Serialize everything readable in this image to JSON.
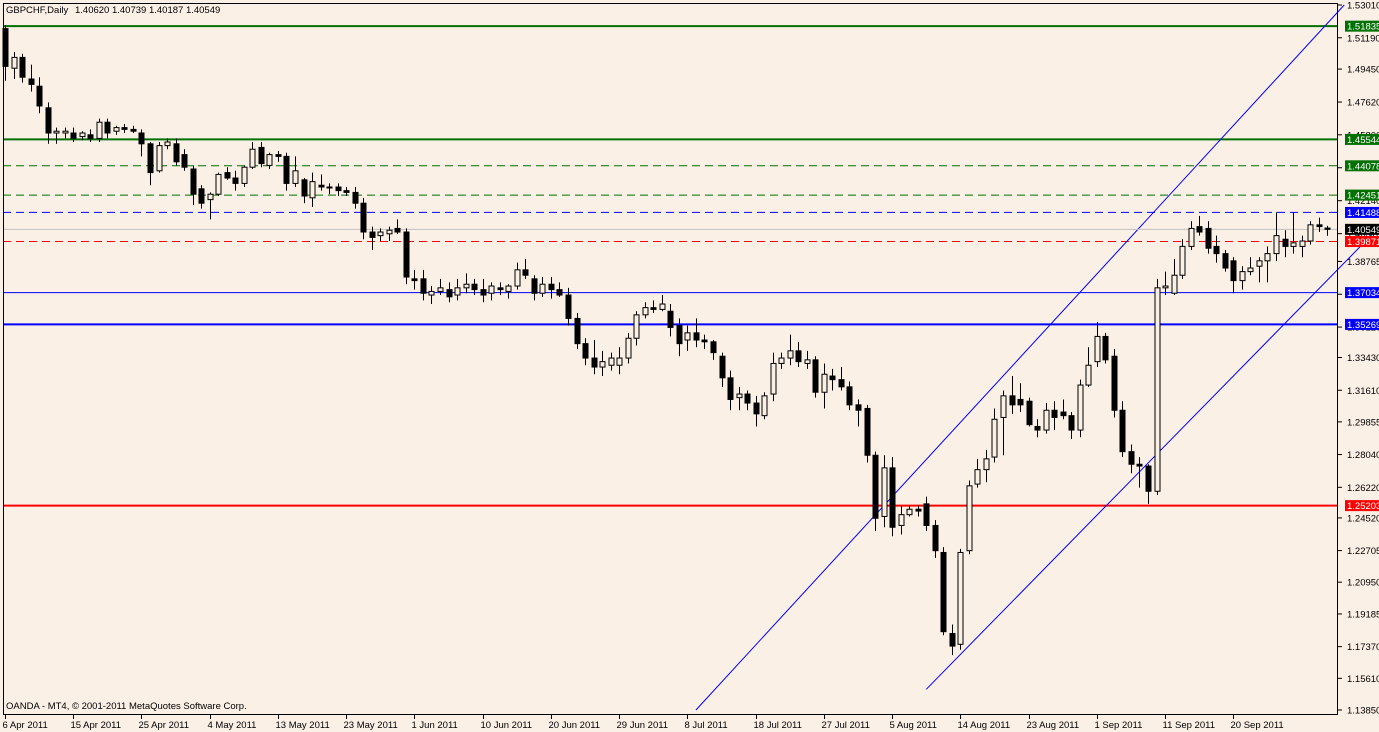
{
  "header": {
    "symbol": "GBPCHF,Daily",
    "ohlc": "1.40620 1.40739 1.40187 1.40549"
  },
  "footer": {
    "copyright": "OANDA - MT4, © 2001-2011 MetaQuotes Software Corp."
  },
  "colors": {
    "background": "#fbf0e6",
    "bull": "#fbf0e6",
    "bear": "#000000",
    "green": "#007000",
    "blue": "#0000ff",
    "red": "#ff0000"
  },
  "chart_data": {
    "type": "candlestick",
    "title": "GBPCHF,Daily",
    "ylim": [
      1.1385,
      1.5301
    ],
    "grid": false,
    "y_ticks": [
      "1.53010",
      "1.51190",
      "1.49450",
      "1.47620",
      "1.45800",
      "1.43970",
      "1.42140",
      "1.40310",
      "1.38765",
      "1.36945",
      "1.35120",
      "1.33430",
      "1.31610",
      "1.29855",
      "1.28040",
      "1.26220",
      "1.24520",
      "1.22705",
      "1.20950",
      "1.19185",
      "1.17370",
      "1.15610",
      "1.13850"
    ],
    "x_labels": [
      {
        "bar": 0,
        "text": "6 Apr 2011"
      },
      {
        "bar": 8,
        "text": "15 Apr 2011"
      },
      {
        "bar": 16,
        "text": "25 Apr 2011"
      },
      {
        "bar": 24,
        "text": "4 May 2011"
      },
      {
        "bar": 32,
        "text": "13 May 2011"
      },
      {
        "bar": 40,
        "text": "23 May 2011"
      },
      {
        "bar": 48,
        "text": "1 Jun 2011"
      },
      {
        "bar": 56,
        "text": "10 Jun 2011"
      },
      {
        "bar": 64,
        "text": "20 Jun 2011"
      },
      {
        "bar": 72,
        "text": "29 Jun 2011"
      },
      {
        "bar": 80,
        "text": "8 Jul 2011"
      },
      {
        "bar": 88,
        "text": "18 Jul 2011"
      },
      {
        "bar": 96,
        "text": "27 Jul 2011"
      },
      {
        "bar": 104,
        "text": "5 Aug 2011"
      },
      {
        "bar": 112,
        "text": "14 Aug 2011"
      },
      {
        "bar": 120,
        "text": "23 Aug 2011"
      },
      {
        "bar": 128,
        "text": "1 Sep 2011"
      },
      {
        "bar": 136,
        "text": "11 Sep 2011"
      },
      {
        "bar": 144,
        "text": "20 Sep 2011"
      }
    ],
    "levels": [
      {
        "value": 1.51835,
        "label": "1.51835",
        "color": "green",
        "style": "solid",
        "width": 2
      },
      {
        "value": 1.45544,
        "label": "1.45544",
        "color": "green",
        "style": "solid",
        "width": 2
      },
      {
        "value": 1.44078,
        "label": "1.44078",
        "color": "green",
        "style": "dashed",
        "width": 1
      },
      {
        "value": 1.42451,
        "label": "1.42451",
        "color": "green",
        "style": "dashed",
        "width": 1
      },
      {
        "value": 1.41488,
        "label": "1.41488",
        "color": "blue",
        "style": "dashed",
        "width": 1
      },
      {
        "value": 1.39871,
        "label": "1.39871",
        "color": "red",
        "style": "dashed",
        "width": 1
      },
      {
        "value": 1.37034,
        "label": "1.37034",
        "color": "blue",
        "style": "solid",
        "width": 1
      },
      {
        "value": 1.35269,
        "label": "1.35269",
        "color": "blue",
        "style": "solid",
        "width": 2
      },
      {
        "value": 1.25203,
        "label": "1.25203",
        "color": "red",
        "style": "solid",
        "width": 2
      }
    ],
    "bid": {
      "value": 1.40549,
      "label": "1.40549"
    },
    "channel": [
      {
        "bar1": 81,
        "price1": 1.1385,
        "bar2": 157,
        "price2": 1.5301
      },
      {
        "bar1": 108,
        "price1": 1.15,
        "bar2": 168,
        "price2": 1.44
      }
    ],
    "candles": [
      [
        1.517,
        1.519,
        1.488,
        1.496
      ],
      [
        1.495,
        1.504,
        1.489,
        1.501
      ],
      [
        1.501,
        1.503,
        1.487,
        1.49
      ],
      [
        1.489,
        1.497,
        1.482,
        1.486
      ],
      [
        1.485,
        1.49,
        1.47,
        1.474
      ],
      [
        1.473,
        1.476,
        1.453,
        1.459
      ],
      [
        1.459,
        1.462,
        1.453,
        1.46
      ],
      [
        1.459,
        1.462,
        1.456,
        1.46
      ],
      [
        1.459,
        1.462,
        1.454,
        1.456
      ],
      [
        1.457,
        1.46,
        1.455,
        1.459
      ],
      [
        1.458,
        1.461,
        1.454,
        1.456
      ],
      [
        1.456,
        1.467,
        1.454,
        1.465
      ],
      [
        1.465,
        1.467,
        1.456,
        1.459
      ],
      [
        1.46,
        1.463,
        1.458,
        1.462
      ],
      [
        1.462,
        1.464,
        1.459,
        1.461
      ],
      [
        1.461,
        1.463,
        1.459,
        1.46
      ],
      [
        1.459,
        1.461,
        1.446,
        1.453
      ],
      [
        1.453,
        1.454,
        1.43,
        1.437
      ],
      [
        1.438,
        1.454,
        1.437,
        1.452
      ],
      [
        1.452,
        1.456,
        1.45,
        1.454
      ],
      [
        1.453,
        1.456,
        1.441,
        1.443
      ],
      [
        1.447,
        1.45,
        1.438,
        1.44
      ],
      [
        1.439,
        1.441,
        1.419,
        1.425
      ],
      [
        1.428,
        1.43,
        1.417,
        1.42
      ],
      [
        1.422,
        1.426,
        1.411,
        1.425
      ],
      [
        1.425,
        1.437,
        1.424,
        1.436
      ],
      [
        1.437,
        1.44,
        1.433,
        1.434
      ],
      [
        1.434,
        1.438,
        1.427,
        1.431
      ],
      [
        1.431,
        1.441,
        1.429,
        1.44
      ],
      [
        1.44,
        1.454,
        1.439,
        1.45
      ],
      [
        1.451,
        1.454,
        1.44,
        1.442
      ],
      [
        1.441,
        1.448,
        1.439,
        1.447
      ],
      [
        1.447,
        1.449,
        1.443,
        1.446
      ],
      [
        1.446,
        1.448,
        1.427,
        1.431
      ],
      [
        1.431,
        1.446,
        1.429,
        1.438
      ],
      [
        1.433,
        1.434,
        1.42,
        1.424
      ],
      [
        1.423,
        1.437,
        1.418,
        1.432
      ],
      [
        1.43,
        1.436,
        1.427,
        1.429
      ],
      [
        1.429,
        1.431,
        1.425,
        1.429
      ],
      [
        1.429,
        1.431,
        1.424,
        1.427
      ],
      [
        1.427,
        1.429,
        1.424,
        1.426
      ],
      [
        1.426,
        1.429,
        1.417,
        1.42
      ],
      [
        1.42,
        1.423,
        1.4,
        1.404
      ],
      [
        1.404,
        1.407,
        1.394,
        1.401
      ],
      [
        1.402,
        1.406,
        1.399,
        1.404
      ],
      [
        1.403,
        1.407,
        1.399,
        1.405
      ],
      [
        1.406,
        1.411,
        1.403,
        1.404
      ],
      [
        1.404,
        1.406,
        1.375,
        1.379
      ],
      [
        1.378,
        1.383,
        1.372,
        1.377
      ],
      [
        1.378,
        1.383,
        1.366,
        1.37
      ],
      [
        1.369,
        1.374,
        1.364,
        1.371
      ],
      [
        1.371,
        1.378,
        1.369,
        1.373
      ],
      [
        1.372,
        1.376,
        1.365,
        1.368
      ],
      [
        1.369,
        1.378,
        1.366,
        1.373
      ],
      [
        1.373,
        1.381,
        1.37,
        1.375
      ],
      [
        1.375,
        1.378,
        1.369,
        1.372
      ],
      [
        1.372,
        1.378,
        1.365,
        1.369
      ],
      [
        1.37,
        1.376,
        1.366,
        1.374
      ],
      [
        1.373,
        1.376,
        1.369,
        1.372
      ],
      [
        1.371,
        1.375,
        1.367,
        1.374
      ],
      [
        1.374,
        1.387,
        1.372,
        1.383
      ],
      [
        1.383,
        1.389,
        1.378,
        1.38
      ],
      [
        1.378,
        1.38,
        1.366,
        1.37
      ],
      [
        1.37,
        1.379,
        1.368,
        1.375
      ],
      [
        1.375,
        1.379,
        1.367,
        1.372
      ],
      [
        1.372,
        1.376,
        1.368,
        1.369
      ],
      [
        1.369,
        1.373,
        1.352,
        1.356
      ],
      [
        1.356,
        1.359,
        1.339,
        1.342
      ],
      [
        1.342,
        1.345,
        1.33,
        1.334
      ],
      [
        1.334,
        1.344,
        1.325,
        1.329
      ],
      [
        1.329,
        1.338,
        1.324,
        1.332
      ],
      [
        1.33,
        1.337,
        1.327,
        1.334
      ],
      [
        1.33,
        1.34,
        1.325,
        1.334
      ],
      [
        1.334,
        1.348,
        1.331,
        1.345
      ],
      [
        1.345,
        1.36,
        1.341,
        1.358
      ],
      [
        1.358,
        1.365,
        1.356,
        1.362
      ],
      [
        1.362,
        1.366,
        1.359,
        1.361
      ],
      [
        1.361,
        1.369,
        1.36,
        1.364
      ],
      [
        1.36,
        1.364,
        1.346,
        1.351
      ],
      [
        1.352,
        1.356,
        1.335,
        1.342
      ],
      [
        1.344,
        1.352,
        1.338,
        1.348
      ],
      [
        1.348,
        1.356,
        1.34,
        1.344
      ],
      [
        1.344,
        1.347,
        1.339,
        1.343
      ],
      [
        1.343,
        1.344,
        1.333,
        1.337
      ],
      [
        1.335,
        1.337,
        1.318,
        1.323
      ],
      [
        1.323,
        1.327,
        1.305,
        1.311
      ],
      [
        1.312,
        1.318,
        1.305,
        1.314
      ],
      [
        1.314,
        1.316,
        1.305,
        1.309
      ],
      [
        1.309,
        1.313,
        1.296,
        1.303
      ],
      [
        1.302,
        1.315,
        1.3,
        1.313
      ],
      [
        1.314,
        1.337,
        1.31,
        1.331
      ],
      [
        1.331,
        1.337,
        1.328,
        1.334
      ],
      [
        1.334,
        1.347,
        1.33,
        1.338
      ],
      [
        1.338,
        1.343,
        1.329,
        1.332
      ],
      [
        1.331,
        1.338,
        1.328,
        1.333
      ],
      [
        1.333,
        1.335,
        1.312,
        1.315
      ],
      [
        1.315,
        1.331,
        1.306,
        1.325
      ],
      [
        1.324,
        1.328,
        1.316,
        1.322
      ],
      [
        1.322,
        1.329,
        1.316,
        1.318
      ],
      [
        1.318,
        1.321,
        1.305,
        1.308
      ],
      [
        1.308,
        1.311,
        1.296,
        1.305
      ],
      [
        1.306,
        1.308,
        1.276,
        1.28
      ],
      [
        1.28,
        1.282,
        1.238,
        1.245
      ],
      [
        1.246,
        1.28,
        1.24,
        1.273
      ],
      [
        1.273,
        1.279,
        1.235,
        1.24
      ],
      [
        1.241,
        1.252,
        1.236,
        1.247
      ],
      [
        1.247,
        1.252,
        1.246,
        1.25
      ],
      [
        1.25,
        1.252,
        1.246,
        1.249
      ],
      [
        1.253,
        1.257,
        1.238,
        1.241
      ],
      [
        1.241,
        1.244,
        1.223,
        1.227
      ],
      [
        1.226,
        1.229,
        1.18,
        1.182
      ],
      [
        1.181,
        1.186,
        1.169,
        1.174
      ],
      [
        1.175,
        1.228,
        1.172,
        1.226
      ],
      [
        1.227,
        1.266,
        1.225,
        1.263
      ],
      [
        1.264,
        1.278,
        1.262,
        1.272
      ],
      [
        1.272,
        1.283,
        1.265,
        1.278
      ],
      [
        1.279,
        1.306,
        1.276,
        1.3
      ],
      [
        1.301,
        1.316,
        1.28,
        1.313
      ],
      [
        1.313,
        1.324,
        1.303,
        1.308
      ],
      [
        1.311,
        1.32,
        1.304,
        1.308
      ],
      [
        1.31,
        1.312,
        1.296,
        1.297
      ],
      [
        1.296,
        1.3,
        1.29,
        1.294
      ],
      [
        1.294,
        1.309,
        1.292,
        1.305
      ],
      [
        1.305,
        1.31,
        1.294,
        1.301
      ],
      [
        1.304,
        1.311,
        1.3,
        1.302
      ],
      [
        1.302,
        1.304,
        1.289,
        1.294
      ],
      [
        1.294,
        1.322,
        1.29,
        1.319
      ],
      [
        1.319,
        1.34,
        1.318,
        1.33
      ],
      [
        1.332,
        1.354,
        1.329,
        1.346
      ],
      [
        1.346,
        1.348,
        1.331,
        1.333
      ],
      [
        1.335,
        1.339,
        1.301,
        1.305
      ],
      [
        1.305,
        1.31,
        1.279,
        1.282
      ],
      [
        1.282,
        1.286,
        1.27,
        1.275
      ],
      [
        1.275,
        1.279,
        1.262,
        1.274
      ],
      [
        1.274,
        1.275,
        1.253,
        1.26
      ],
      [
        1.26,
        1.378,
        1.258,
        1.373
      ],
      [
        1.373,
        1.382,
        1.369,
        1.374
      ],
      [
        1.37,
        1.389,
        1.369,
        1.38
      ],
      [
        1.38,
        1.4,
        1.378,
        1.396
      ],
      [
        1.396,
        1.41,
        1.394,
        1.406
      ],
      [
        1.407,
        1.413,
        1.402,
        1.404
      ],
      [
        1.406,
        1.41,
        1.392,
        1.395
      ],
      [
        1.396,
        1.402,
        1.387,
        1.392
      ],
      [
        1.392,
        1.394,
        1.382,
        1.384
      ],
      [
        1.388,
        1.39,
        1.37,
        1.377
      ],
      [
        1.377,
        1.385,
        1.372,
        1.382
      ],
      [
        1.382,
        1.39,
        1.38,
        1.384
      ],
      [
        1.385,
        1.39,
        1.376,
        1.388
      ],
      [
        1.388,
        1.396,
        1.376,
        1.392
      ],
      [
        1.392,
        1.415,
        1.388,
        1.402
      ],
      [
        1.4,
        1.405,
        1.39,
        1.396
      ],
      [
        1.396,
        1.415,
        1.392,
        1.398
      ],
      [
        1.396,
        1.402,
        1.39,
        1.399
      ],
      [
        1.399,
        1.41,
        1.397,
        1.408
      ],
      [
        1.408,
        1.412,
        1.404,
        1.407
      ],
      [
        1.4062,
        1.4074,
        1.4019,
        1.4055
      ]
    ]
  }
}
